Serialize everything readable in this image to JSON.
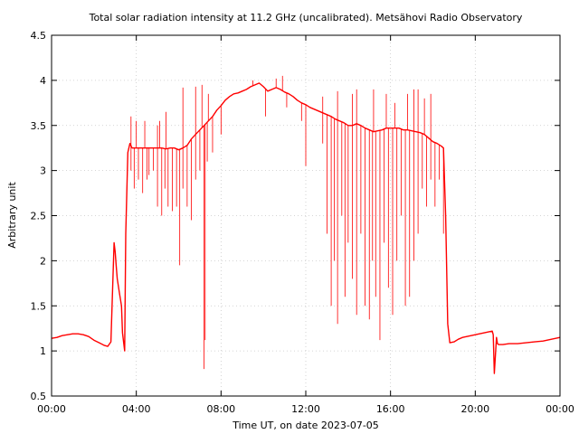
{
  "chart_data": {
    "type": "line",
    "title": "Total solar radiation intensity at 11.2 GHz (uncalibrated). Metsähovi Radio Observatory",
    "xlabel": "Time UT, on date 2023-07-05",
    "ylabel": "Arbitrary unit",
    "x_unit": "hours UT",
    "xlim": [
      0,
      24
    ],
    "ylim": [
      0.5,
      4.5
    ],
    "x_ticks": [
      0,
      4,
      8,
      12,
      16,
      20,
      24
    ],
    "x_tick_labels": [
      "00:00",
      "04:00",
      "08:00",
      "12:00",
      "16:00",
      "20:00",
      "00:00"
    ],
    "y_ticks": [
      0.5,
      1,
      1.5,
      2,
      2.5,
      3,
      3.5,
      4,
      4.5
    ],
    "y_tick_labels": [
      "0.5",
      "1",
      "1.5",
      "2",
      "2.5",
      "3",
      "3.5",
      "4",
      "4.5"
    ],
    "grid": true,
    "legend": "none",
    "series_color": "#ff0000",
    "series": [
      {
        "name": "",
        "x": [
          0.0,
          0.25,
          0.5,
          0.75,
          1.0,
          1.25,
          1.5,
          1.75,
          2.0,
          2.25,
          2.5,
          2.65,
          2.8,
          2.95,
          3.0,
          3.05,
          3.1,
          3.2,
          3.3,
          3.35,
          3.45,
          3.5,
          3.6,
          3.7,
          3.8,
          4.0,
          4.2,
          4.4,
          4.6,
          4.8,
          5.0,
          5.2,
          5.4,
          5.6,
          5.8,
          6.0,
          6.2,
          6.4,
          6.6,
          6.8,
          7.0,
          7.2,
          7.4,
          7.6,
          7.8,
          8.0,
          8.2,
          8.4,
          8.6,
          8.8,
          9.0,
          9.2,
          9.4,
          9.6,
          9.8,
          10.0,
          10.2,
          10.4,
          10.6,
          10.8,
          11.0,
          11.2,
          11.4,
          11.6,
          11.8,
          12.0,
          12.2,
          12.4,
          12.6,
          12.8,
          13.0,
          13.2,
          13.4,
          13.6,
          13.8,
          14.0,
          14.2,
          14.4,
          14.6,
          14.8,
          15.0,
          15.2,
          15.4,
          15.6,
          15.8,
          16.0,
          16.2,
          16.4,
          16.6,
          16.8,
          17.0,
          17.2,
          17.4,
          17.6,
          17.8,
          18.0,
          18.2,
          18.4,
          18.5,
          18.6,
          18.7,
          18.8,
          19.0,
          19.2,
          19.4,
          19.6,
          19.8,
          20.0,
          20.2,
          20.4,
          20.6,
          20.8,
          20.85,
          20.9,
          21.0,
          21.05,
          21.1,
          21.3,
          21.6,
          22.0,
          22.4,
          22.8,
          23.2,
          23.6,
          24.0
        ],
        "y": [
          1.14,
          1.15,
          1.17,
          1.18,
          1.19,
          1.19,
          1.18,
          1.16,
          1.12,
          1.09,
          1.06,
          1.05,
          1.1,
          2.2,
          2.1,
          1.95,
          1.8,
          1.65,
          1.5,
          1.2,
          1.0,
          2.3,
          3.2,
          3.3,
          3.25,
          3.25,
          3.25,
          3.25,
          3.25,
          3.25,
          3.25,
          3.25,
          3.24,
          3.25,
          3.25,
          3.23,
          3.25,
          3.28,
          3.35,
          3.4,
          3.45,
          3.5,
          3.55,
          3.6,
          3.67,
          3.72,
          3.78,
          3.82,
          3.85,
          3.86,
          3.88,
          3.9,
          3.93,
          3.95,
          3.97,
          3.93,
          3.88,
          3.9,
          3.92,
          3.9,
          3.87,
          3.85,
          3.82,
          3.78,
          3.75,
          3.73,
          3.7,
          3.68,
          3.66,
          3.64,
          3.62,
          3.6,
          3.57,
          3.55,
          3.53,
          3.5,
          3.5,
          3.52,
          3.5,
          3.47,
          3.45,
          3.43,
          3.44,
          3.45,
          3.47,
          3.47,
          3.47,
          3.47,
          3.45,
          3.45,
          3.44,
          3.43,
          3.42,
          3.4,
          3.36,
          3.32,
          3.3,
          3.27,
          3.25,
          2.5,
          1.3,
          1.09,
          1.1,
          1.13,
          1.15,
          1.16,
          1.17,
          1.18,
          1.19,
          1.2,
          1.21,
          1.22,
          1.18,
          0.75,
          1.15,
          1.08,
          1.07,
          1.07,
          1.08,
          1.08,
          1.09,
          1.1,
          1.11,
          1.13,
          1.15
        ]
      }
    ],
    "spikes": [
      [
        3.75,
        3.0
      ],
      [
        3.9,
        2.8
      ],
      [
        4.1,
        2.9
      ],
      [
        4.3,
        2.75
      ],
      [
        4.5,
        2.9
      ],
      [
        4.6,
        2.95
      ],
      [
        4.8,
        3.0
      ],
      [
        5.0,
        2.6
      ],
      [
        5.2,
        2.5
      ],
      [
        5.35,
        2.8
      ],
      [
        5.5,
        2.6
      ],
      [
        5.7,
        2.55
      ],
      [
        5.9,
        2.6
      ],
      [
        6.05,
        1.95
      ],
      [
        6.2,
        2.8
      ],
      [
        6.4,
        2.6
      ],
      [
        6.6,
        2.45
      ],
      [
        6.8,
        2.9
      ],
      [
        7.0,
        3.0
      ],
      [
        7.2,
        0.8
      ],
      [
        7.25,
        1.12
      ],
      [
        7.35,
        3.1
      ],
      [
        7.6,
        3.2
      ],
      [
        8.0,
        3.4
      ],
      [
        10.1,
        3.6
      ],
      [
        11.1,
        3.7
      ],
      [
        11.8,
        3.55
      ],
      [
        12.0,
        3.05
      ],
      [
        12.8,
        3.3
      ],
      [
        13.0,
        2.3
      ],
      [
        13.2,
        1.5
      ],
      [
        13.35,
        2.0
      ],
      [
        13.5,
        1.3
      ],
      [
        13.7,
        2.5
      ],
      [
        13.85,
        1.6
      ],
      [
        14.0,
        2.2
      ],
      [
        14.2,
        1.8
      ],
      [
        14.4,
        1.4
      ],
      [
        14.6,
        2.3
      ],
      [
        14.8,
        1.5
      ],
      [
        15.0,
        1.35
      ],
      [
        15.15,
        2.0
      ],
      [
        15.3,
        1.6
      ],
      [
        15.5,
        1.12
      ],
      [
        15.7,
        2.2
      ],
      [
        15.9,
        1.7
      ],
      [
        16.1,
        1.4
      ],
      [
        16.3,
        2.0
      ],
      [
        16.5,
        2.5
      ],
      [
        16.7,
        1.5
      ],
      [
        16.9,
        1.6
      ],
      [
        17.1,
        2.0
      ],
      [
        17.3,
        2.3
      ],
      [
        17.5,
        2.8
      ],
      [
        17.7,
        2.6
      ],
      [
        17.9,
        2.9
      ],
      [
        18.1,
        2.6
      ],
      [
        18.3,
        2.9
      ],
      [
        18.5,
        2.3
      ]
    ],
    "upper_spikes": [
      [
        3.75,
        3.6
      ],
      [
        4.0,
        3.55
      ],
      [
        4.4,
        3.55
      ],
      [
        5.0,
        3.5
      ],
      [
        5.1,
        3.55
      ],
      [
        5.4,
        3.65
      ],
      [
        6.2,
        3.92
      ],
      [
        6.8,
        3.93
      ],
      [
        7.1,
        3.95
      ],
      [
        7.4,
        3.85
      ],
      [
        9.5,
        4.0
      ],
      [
        10.6,
        4.02
      ],
      [
        10.9,
        4.05
      ],
      [
        12.8,
        3.82
      ],
      [
        13.5,
        3.88
      ],
      [
        14.2,
        3.85
      ],
      [
        14.4,
        3.9
      ],
      [
        15.2,
        3.9
      ],
      [
        15.8,
        3.85
      ],
      [
        16.2,
        3.75
      ],
      [
        16.8,
        3.85
      ],
      [
        17.1,
        3.9
      ],
      [
        17.3,
        3.9
      ],
      [
        17.6,
        3.8
      ],
      [
        17.9,
        3.85
      ]
    ]
  }
}
